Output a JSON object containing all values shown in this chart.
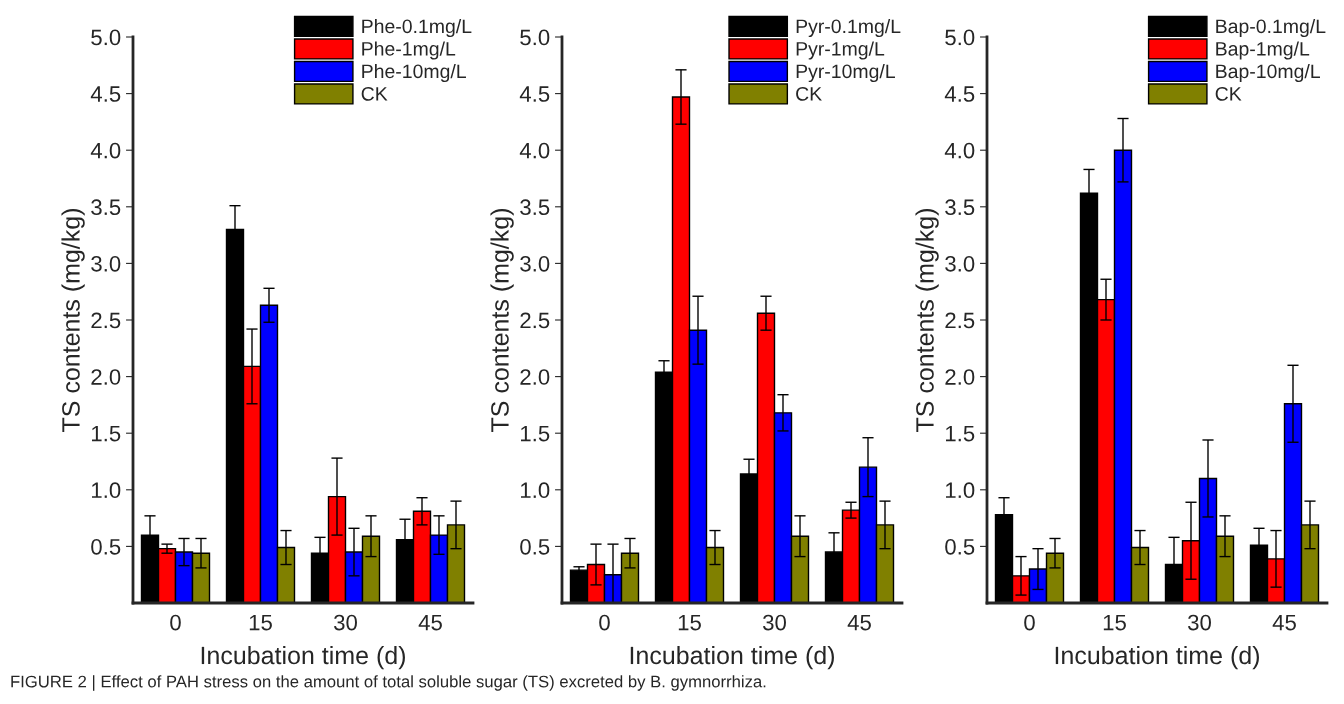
{
  "chart_data": [
    {
      "type": "bar",
      "xlabel": "Incubation time (d)",
      "ylabel": "TS contents (mg/kg)",
      "categories": [
        "0",
        "15",
        "30",
        "45"
      ],
      "ylim": [
        0,
        5
      ],
      "yticks": [
        0.5,
        {
          "value": 1,
          "label": "1.0"
        },
        1.5,
        {
          "value": 2,
          "label": "2.0"
        },
        2.5,
        {
          "value": 3,
          "label": "3.0"
        },
        3.5,
        {
          "value": 4,
          "label": "4.0"
        },
        4.5,
        {
          "value": 5,
          "label": "5.0"
        }
      ],
      "legend": "top right",
      "annotations": [
        "FIGURE 2 | Effect of PAH stress on the amount of total soluble sugar (TS) excreted by B. gymnorrhiza."
      ],
      "series": [
        {
          "name": "Phe-0.1mg/L",
          "color": "#000000",
          "values": [
            0.6,
            3.3,
            0.44,
            0.56
          ],
          "errors": [
            0.17,
            0.21,
            0.14,
            0.18
          ]
        },
        {
          "name": "Phe-1mg/L",
          "color": "#ff0000",
          "values": [
            0.48,
            2.09,
            0.94,
            0.81
          ],
          "errors": [
            0.04,
            0.33,
            0.34,
            0.12
          ]
        },
        {
          "name": "Phe-10mg/L",
          "color": "#0000ff",
          "values": [
            0.45,
            2.63,
            0.45,
            0.6
          ],
          "errors": [
            0.12,
            0.15,
            0.21,
            0.17
          ]
        },
        {
          "name": "CK",
          "color": "#808000",
          "values": [
            0.44,
            0.49,
            0.59,
            0.69
          ],
          "errors": [
            0.13,
            0.15,
            0.18,
            0.21
          ]
        }
      ]
    },
    {
      "type": "bar",
      "xlabel": "Incubation time (d)",
      "ylabel": "TS contents (mg/kg)",
      "categories": [
        "0",
        "15",
        "30",
        "45"
      ],
      "ylim": [
        0,
        5
      ],
      "yticks": [
        0.5,
        {
          "value": 1,
          "label": "1.0"
        },
        1.5,
        {
          "value": 2,
          "label": "2.0"
        },
        2.5,
        {
          "value": 3,
          "label": "3.0"
        },
        3.5,
        {
          "value": 4,
          "label": "4.0"
        },
        4.5,
        {
          "value": 5,
          "label": "5.0"
        }
      ],
      "legend": "top right",
      "series": [
        {
          "name": "Pyr-0.1mg/L",
          "color": "#000000",
          "values": [
            0.29,
            2.04,
            1.14,
            0.45
          ],
          "errors": [
            0.03,
            0.1,
            0.13,
            0.17
          ]
        },
        {
          "name": "Pyr-1mg/L",
          "color": "#ff0000",
          "values": [
            0.34,
            4.47,
            2.56,
            0.82
          ],
          "errors": [
            0.18,
            0.24,
            0.15,
            0.07
          ]
        },
        {
          "name": "Pyr-10mg/L",
          "color": "#0000ff",
          "values": [
            0.25,
            2.41,
            1.68,
            1.2
          ],
          "errors": [
            0.27,
            0.3,
            0.16,
            0.26
          ]
        },
        {
          "name": "CK",
          "color": "#808000",
          "values": [
            0.44,
            0.49,
            0.59,
            0.69
          ],
          "errors": [
            0.13,
            0.15,
            0.18,
            0.21
          ]
        }
      ]
    },
    {
      "type": "bar",
      "xlabel": "Incubation time (d)",
      "ylabel": "TS contents (mg/kg)",
      "categories": [
        "0",
        "15",
        "30",
        "45"
      ],
      "ylim": [
        0,
        5
      ],
      "yticks": [
        0.5,
        {
          "value": 1,
          "label": "1.0"
        },
        1.5,
        {
          "value": 2,
          "label": "2.0"
        },
        2.5,
        {
          "value": 3,
          "label": "3.0"
        },
        3.5,
        {
          "value": 4,
          "label": "4.0"
        },
        4.5,
        {
          "value": 5,
          "label": "5.0"
        }
      ],
      "legend": "top right",
      "series": [
        {
          "name": "Bap-0.1mg/L",
          "color": "#000000",
          "values": [
            0.78,
            3.62,
            0.34,
            0.51
          ],
          "errors": [
            0.15,
            0.21,
            0.24,
            0.15
          ]
        },
        {
          "name": "Bap-1mg/L",
          "color": "#ff0000",
          "values": [
            0.24,
            2.68,
            0.55,
            0.39
          ],
          "errors": [
            0.17,
            0.18,
            0.34,
            0.25
          ]
        },
        {
          "name": "Bap-10mg/L",
          "color": "#0000ff",
          "values": [
            0.3,
            4.0,
            1.1,
            1.76
          ],
          "errors": [
            0.18,
            0.28,
            0.34,
            0.34
          ]
        },
        {
          "name": "CK",
          "color": "#808000",
          "values": [
            0.44,
            0.49,
            0.59,
            0.69
          ],
          "errors": [
            0.13,
            0.15,
            0.18,
            0.21
          ]
        }
      ]
    }
  ]
}
